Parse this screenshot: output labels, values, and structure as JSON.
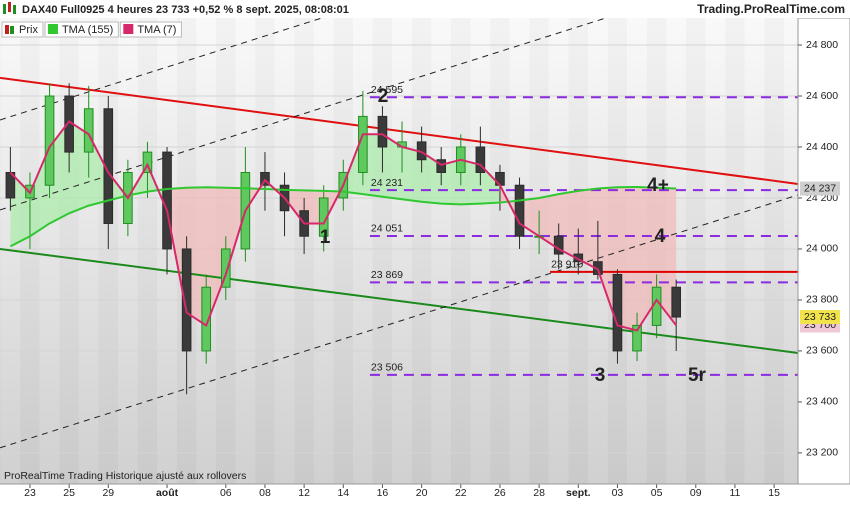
{
  "chart_data": {
    "type": "candlestick",
    "title": "DAX40 Full0925 4 heures 23 733 +0,52 % 8 sept. 2025, 08:08:01",
    "source": "Trading.ProRealTime.com",
    "footer": "ProRealTime Trading  Historique ajusté aux rollovers",
    "x": [
      -1,
      0,
      1,
      2,
      3,
      4,
      5,
      6,
      7,
      8,
      9,
      10,
      11,
      12,
      13,
      14,
      15,
      16,
      17,
      18,
      19,
      20,
      21,
      22,
      23,
      24,
      25,
      26,
      27,
      28,
      29,
      30,
      31,
      32,
      33
    ],
    "ohlc": {
      "name": "Prix",
      "up_color": "#1f8f1f",
      "down_color": "#2b2b2b",
      "label_bg": "#f3e34a",
      "last_label": "23 733",
      "open": [
        24300,
        24200,
        24250,
        24600,
        24380,
        24550,
        24100,
        24300,
        24380,
        24000,
        23600,
        23850,
        24000,
        24300,
        24250,
        24150,
        24050,
        24200,
        24300,
        24520,
        24400,
        24420,
        24350,
        24300,
        24400,
        24300,
        24250,
        24050,
        24050,
        23980,
        23950,
        23900,
        23600,
        23700,
        23850
      ],
      "high": [
        24400,
        24300,
        24650,
        24650,
        24640,
        24600,
        24350,
        24420,
        24400,
        24050,
        23900,
        24050,
        24400,
        24380,
        24300,
        24200,
        24250,
        24350,
        24620,
        24560,
        24500,
        24480,
        24400,
        24450,
        24480,
        24330,
        24280,
        24150,
        24100,
        24080,
        24110,
        23920,
        23750,
        23900,
        23880
      ],
      "low": [
        24150,
        24000,
        24200,
        24300,
        24280,
        24000,
        24050,
        24200,
        23900,
        23430,
        23550,
        23800,
        23950,
        24150,
        24050,
        23980,
        23990,
        24150,
        24250,
        24300,
        24300,
        24300,
        24250,
        24250,
        24250,
        24150,
        24000,
        23980,
        23920,
        23900,
        23880,
        23550,
        23560,
        23650,
        23600
      ],
      "close": [
        24200,
        24250,
        24600,
        24380,
        24550,
        24100,
        24300,
        24380,
        24000,
        23600,
        23850,
        24000,
        24300,
        24250,
        24150,
        24050,
        24200,
        24300,
        24520,
        24400,
        24420,
        24350,
        24300,
        24400,
        24300,
        24250,
        24050,
        24050,
        23980,
        23950,
        23900,
        23600,
        23700,
        23850,
        23733
      ]
    },
    "series": [
      {
        "name": "TMA (155)",
        "color": "#30c830",
        "label_bg": "#cfcfcf",
        "last_label": "24 237",
        "values": [
          24010,
          24050,
          24100,
          24140,
          24170,
          24190,
          24210,
          24225,
          24235,
          24240,
          24242,
          24240,
          24238,
          24235,
          24232,
          24230,
          24228,
          24225,
          24215,
          24205,
          24195,
          24185,
          24178,
          24175,
          24178,
          24182,
          24190,
          24200,
          24215,
          24228,
          24237,
          24242,
          24243,
          24240,
          24237
        ]
      },
      {
        "name": "TMA (7)",
        "color": "#d6286a",
        "label_bg": "#f0c8d6",
        "last_label": "23 700",
        "values": [
          24300,
          24220,
          24400,
          24500,
          24450,
          24300,
          24200,
          24330,
          24150,
          23750,
          23700,
          23900,
          24150,
          24270,
          24200,
          24100,
          24100,
          24250,
          24450,
          24450,
          24400,
          24380,
          24330,
          24350,
          24330,
          24250,
          24100,
          24050,
          24000,
          23960,
          23920,
          23700,
          23680,
          23800,
          23700
        ]
      }
    ],
    "xlim": [
      -1.53,
      39.22
    ],
    "xticks": [
      {
        "value": 0,
        "label": "23"
      },
      {
        "value": 2,
        "label": "25"
      },
      {
        "value": 4,
        "label": "29"
      },
      {
        "value": 7,
        "label": "août"
      },
      {
        "value": 10,
        "label": "06"
      },
      {
        "value": 12,
        "label": "08"
      },
      {
        "value": 14,
        "label": "12"
      },
      {
        "value": 16,
        "label": "14"
      },
      {
        "value": 18,
        "label": "16"
      },
      {
        "value": 20,
        "label": "20"
      },
      {
        "value": 22,
        "label": "22"
      },
      {
        "value": 24,
        "label": "26"
      },
      {
        "value": 26,
        "label": "28"
      },
      {
        "value": 28,
        "label": "sept."
      },
      {
        "value": 30,
        "label": "03"
      },
      {
        "value": 32,
        "label": "05"
      },
      {
        "value": 34,
        "label": "09"
      },
      {
        "value": 36,
        "label": "11"
      },
      {
        "value": 38,
        "label": "15"
      }
    ],
    "ylim": [
      23078,
      24906
    ],
    "yticks": [
      {
        "value": 23200,
        "label": "23 200"
      },
      {
        "value": 23400,
        "label": "23 400"
      },
      {
        "value": 23600,
        "label": "23 600"
      },
      {
        "value": 23800,
        "label": "23 800"
      },
      {
        "value": 24000,
        "label": "24 000"
      },
      {
        "value": 24200,
        "label": "24 200"
      },
      {
        "value": 24400,
        "label": "24 400"
      },
      {
        "value": 24600,
        "label": "24 600"
      },
      {
        "value": 24800,
        "label": "24 800"
      }
    ],
    "grid": true,
    "levels": [
      {
        "value": 24595,
        "label": "24 595",
        "color": "#8a2be2",
        "x_from": 17.36
      },
      {
        "value": 24231,
        "label": "24 231",
        "color": "#8a2be2",
        "x_from": 17.36
      },
      {
        "value": 24051,
        "label": "24 051",
        "color": "#8a2be2",
        "x_from": 17.36
      },
      {
        "value": 23869,
        "label": "23 869",
        "color": "#8a2be2",
        "x_from": 17.36
      },
      {
        "value": 23506,
        "label": "23 506",
        "color": "#8a2be2",
        "x_from": 17.36
      },
      {
        "value": 23910,
        "label": "23 910",
        "color": "#e00000",
        "x_from": 26.56
      }
    ],
    "trendlines": [
      {
        "x": [
          -1.53,
          39.22
        ],
        "y": [
          24671,
          24255
        ],
        "color": "#e01010",
        "dashed": false
      },
      {
        "x": [
          -1.53,
          39.22
        ],
        "y": [
          24000,
          23592
        ],
        "color": "#1a8a1a",
        "dashed": false
      },
      {
        "x": [
          -1.53,
          39.22
        ],
        "y": [
          23220,
          24212
        ],
        "color": "#222222",
        "dashed": true
      },
      {
        "x": [
          -1.53,
          39.22
        ],
        "y": [
          24153,
          25145
        ],
        "color": "#222222",
        "dashed": true
      },
      {
        "x": [
          -1.53,
          39.22
        ],
        "y": [
          24506,
          25498
        ],
        "color": "#222222",
        "dashed": true
      }
    ],
    "waves": [
      {
        "label": "1",
        "x": 15.07,
        "y": 24043
      },
      {
        "label": "2",
        "x": 18.03,
        "y": 24596
      },
      {
        "label": "3",
        "x": 29.11,
        "y": 23502
      },
      {
        "label": "4",
        "x": 32.17,
        "y": 24047
      },
      {
        "label": "4+",
        "x": 32.07,
        "y": 24247
      },
      {
        "label": "5r",
        "x": 34.06,
        "y": 23502
      }
    ],
    "wave_color": "#8a2be2"
  }
}
